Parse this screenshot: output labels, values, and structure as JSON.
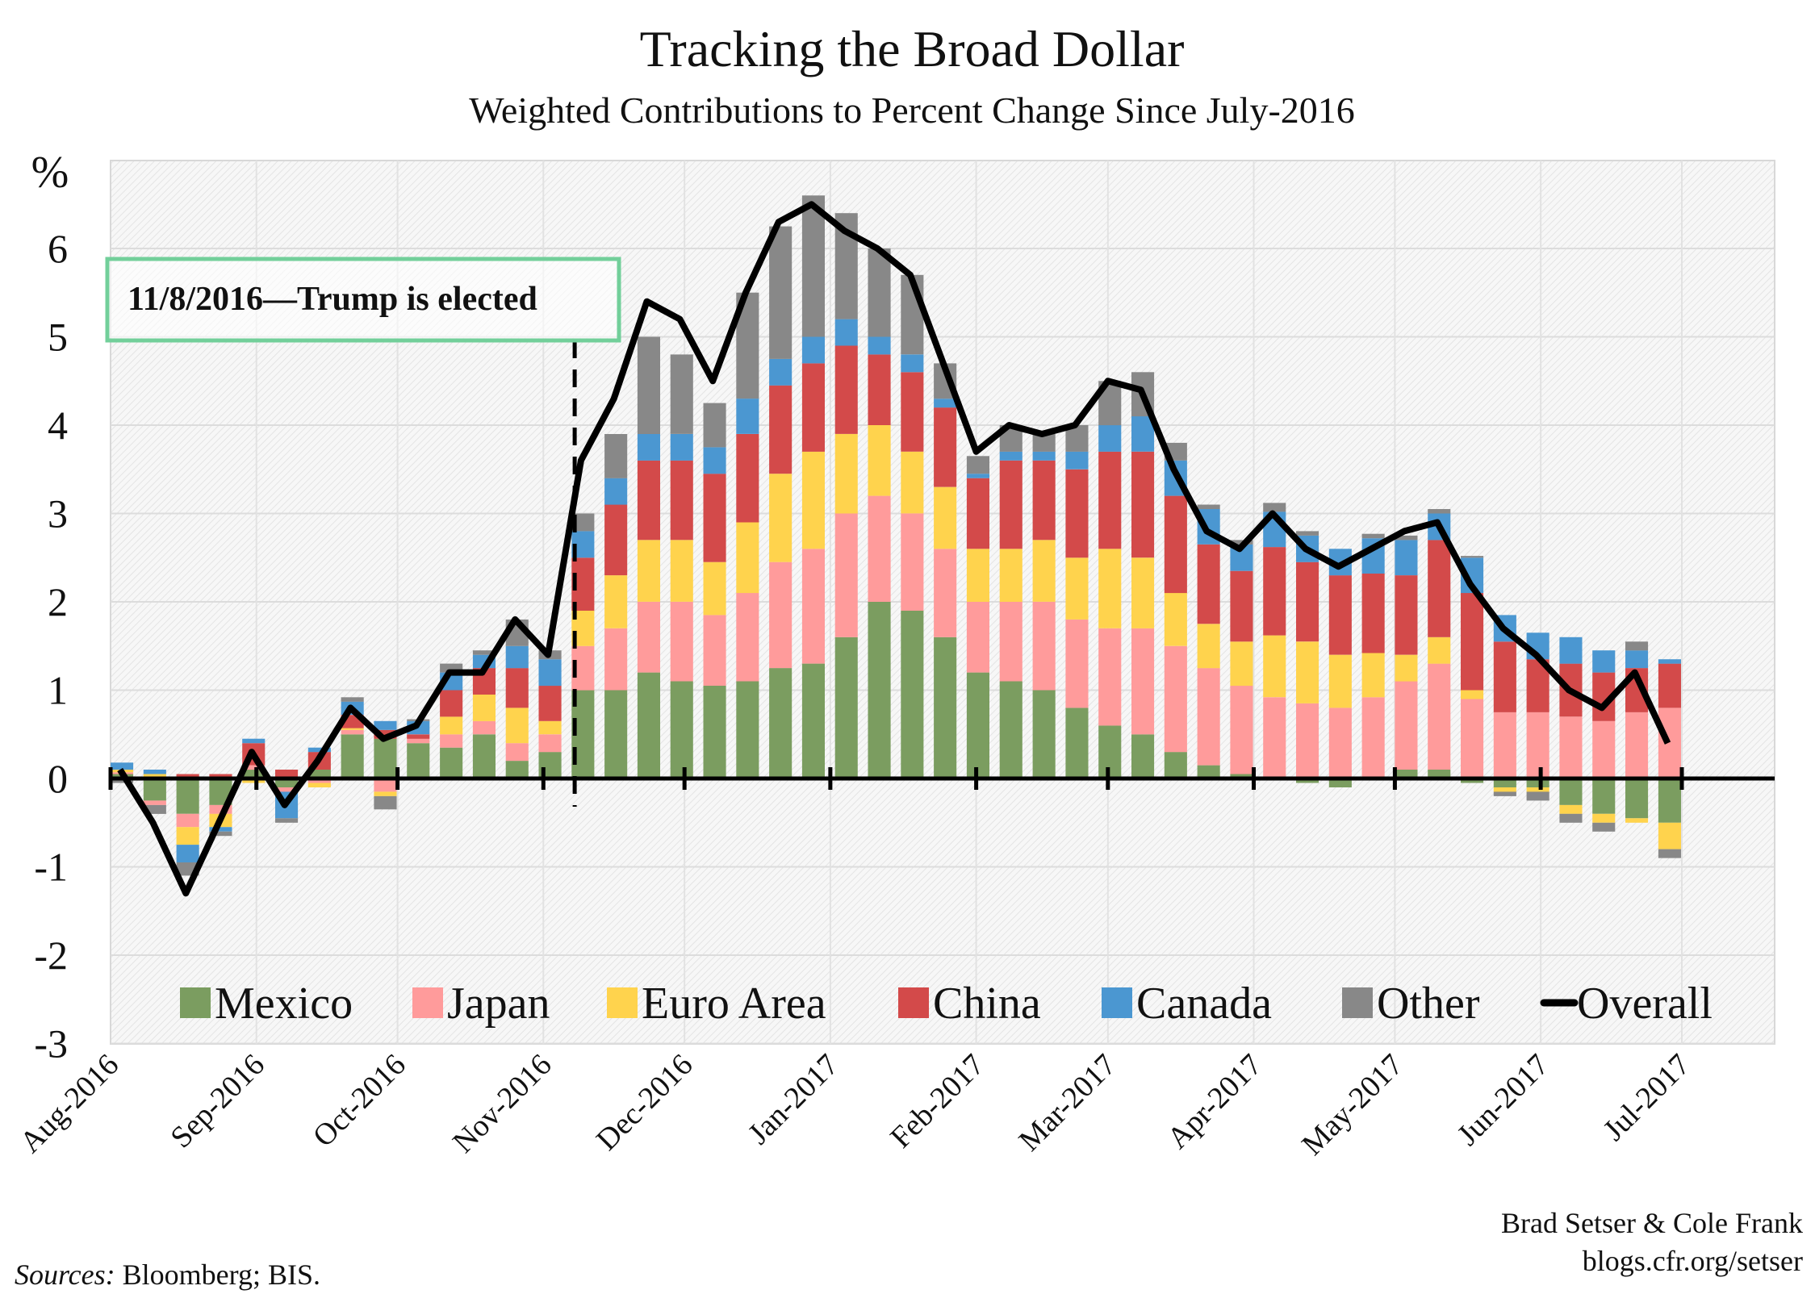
{
  "chart_data": {
    "type": "bar",
    "stacked": true,
    "title": "Tracking the Broad Dollar",
    "subtitle": "Weighted Contributions to Percent Change Since July-2016",
    "ylabel": "%",
    "ylim": [
      -3,
      7
    ],
    "yticks": [
      "-3",
      "-2",
      "-1",
      "0",
      "1",
      "2",
      "3",
      "4",
      "5",
      "6"
    ],
    "xtick_labels": [
      "Aug-2016",
      "Sep-2016",
      "Oct-2016",
      "Nov-2016",
      "Dec-2016",
      "Jan-2017",
      "Feb-2017",
      "Mar-2017",
      "Apr-2017",
      "May-2017",
      "Jun-2017",
      "Jul-2017"
    ],
    "grid": true,
    "legend_position": "bottom",
    "annotation": {
      "text": "11/8/2016—Trump is elected",
      "date": "2016-11-08"
    },
    "x_unit": "week starting (Mon)",
    "weeks": [
      "2016-08-01",
      "2016-08-08",
      "2016-08-15",
      "2016-08-22",
      "2016-08-29",
      "2016-09-05",
      "2016-09-12",
      "2016-09-19",
      "2016-09-26",
      "2016-10-03",
      "2016-10-10",
      "2016-10-17",
      "2016-10-24",
      "2016-10-31",
      "2016-11-07",
      "2016-11-14",
      "2016-11-21",
      "2016-11-28",
      "2016-12-05",
      "2016-12-12",
      "2016-12-19",
      "2016-12-26",
      "2017-01-02",
      "2017-01-09",
      "2017-01-16",
      "2017-01-23",
      "2017-01-30",
      "2017-02-06",
      "2017-02-13",
      "2017-02-20",
      "2017-02-27",
      "2017-03-06",
      "2017-03-13",
      "2017-03-20",
      "2017-03-27",
      "2017-04-03",
      "2017-04-10",
      "2017-04-17",
      "2017-04-24",
      "2017-05-01",
      "2017-05-08",
      "2017-05-15",
      "2017-05-22",
      "2017-05-29",
      "2017-06-05",
      "2017-06-12",
      "2017-06-19",
      "2017-06-26"
    ],
    "series": [
      {
        "name": "Mexico",
        "color": "#7b9d60",
        "values": [
          0.05,
          -0.25,
          -0.4,
          -0.3,
          0.1,
          -0.1,
          0.1,
          0.5,
          0.45,
          0.4,
          0.35,
          0.5,
          0.2,
          0.3,
          1.0,
          1.0,
          1.2,
          1.1,
          1.05,
          1.1,
          1.25,
          1.3,
          1.6,
          2.0,
          1.9,
          1.6,
          1.2,
          1.1,
          1.0,
          0.8,
          0.6,
          0.5,
          0.3,
          0.15,
          0.05,
          0.02,
          -0.05,
          -0.1,
          0.02,
          0.1,
          0.1,
          -0.05,
          -0.1,
          -0.1,
          -0.3,
          -0.4,
          -0.45,
          -0.5
        ]
      },
      {
        "name": "Japan",
        "color": "#ff9b9b",
        "values": [
          0.02,
          -0.05,
          -0.15,
          -0.1,
          0.05,
          -0.05,
          -0.05,
          0.05,
          -0.15,
          0.05,
          0.15,
          0.15,
          0.2,
          0.2,
          0.5,
          0.7,
          0.8,
          0.9,
          0.8,
          1.0,
          1.2,
          1.3,
          1.4,
          1.2,
          1.1,
          1.0,
          0.8,
          0.9,
          1.0,
          1.0,
          1.1,
          1.2,
          1.2,
          1.1,
          1.0,
          0.9,
          0.85,
          0.8,
          0.9,
          1.0,
          1.2,
          0.9,
          0.75,
          0.75,
          0.7,
          0.65,
          0.75,
          0.8
        ]
      },
      {
        "name": "Euro Area",
        "color": "#ffd34d",
        "values": [
          0.03,
          0.05,
          -0.2,
          -0.15,
          -0.05,
          0.0,
          -0.05,
          0.02,
          -0.05,
          -0.02,
          0.2,
          0.3,
          0.4,
          0.15,
          0.4,
          0.6,
          0.7,
          0.7,
          0.6,
          0.8,
          1.0,
          1.1,
          0.9,
          0.8,
          0.7,
          0.7,
          0.6,
          0.6,
          0.7,
          0.7,
          0.9,
          0.8,
          0.6,
          0.5,
          0.5,
          0.7,
          0.7,
          0.6,
          0.5,
          0.3,
          0.3,
          0.1,
          -0.05,
          -0.05,
          -0.1,
          -0.1,
          -0.05,
          -0.3
        ]
      },
      {
        "name": "China",
        "color": "#d34a4a",
        "values": [
          0.0,
          0.0,
          0.05,
          0.05,
          0.25,
          0.1,
          0.2,
          0.15,
          0.1,
          0.05,
          0.3,
          0.3,
          0.45,
          0.4,
          0.6,
          0.8,
          0.9,
          0.9,
          1.0,
          1.0,
          1.0,
          1.0,
          1.0,
          0.8,
          0.9,
          0.9,
          0.8,
          1.0,
          0.9,
          1.0,
          1.1,
          1.2,
          1.1,
          0.9,
          0.8,
          1.0,
          0.9,
          0.9,
          0.9,
          0.9,
          1.1,
          1.1,
          0.8,
          0.6,
          0.6,
          0.55,
          0.5,
          0.5
        ]
      },
      {
        "name": "Canada",
        "color": "#4b97d1",
        "values": [
          0.08,
          0.05,
          -0.2,
          -0.05,
          0.05,
          -0.3,
          0.05,
          0.15,
          0.1,
          0.15,
          0.2,
          0.15,
          0.25,
          0.3,
          0.3,
          0.3,
          0.3,
          0.3,
          0.3,
          0.4,
          0.3,
          0.3,
          0.3,
          0.2,
          0.2,
          0.1,
          0.05,
          0.1,
          0.1,
          0.2,
          0.3,
          0.4,
          0.4,
          0.4,
          0.3,
          0.4,
          0.3,
          0.3,
          0.4,
          0.4,
          0.3,
          0.4,
          0.3,
          0.3,
          0.3,
          0.25,
          0.2,
          0.05
        ]
      },
      {
        "name": "Other",
        "color": "#888888",
        "values": [
          -0.05,
          -0.1,
          -0.15,
          -0.05,
          0.0,
          -0.05,
          0.0,
          0.05,
          -0.15,
          0.02,
          0.1,
          0.05,
          0.3,
          0.1,
          0.2,
          0.5,
          1.1,
          0.9,
          0.5,
          1.2,
          1.5,
          1.6,
          1.2,
          1.0,
          0.9,
          0.4,
          0.2,
          0.3,
          0.2,
          0.3,
          0.5,
          0.5,
          0.2,
          0.05,
          0.05,
          0.1,
          0.05,
          0.0,
          0.05,
          0.05,
          0.05,
          0.02,
          -0.05,
          -0.1,
          -0.1,
          -0.1,
          0.1,
          -0.1
        ]
      }
    ],
    "overall": {
      "name": "Overall",
      "color": "#000000",
      "values": [
        0.1,
        -0.5,
        -1.3,
        -0.5,
        0.3,
        -0.3,
        0.2,
        0.8,
        0.45,
        0.6,
        1.2,
        1.2,
        1.8,
        1.4,
        3.6,
        4.3,
        5.4,
        5.2,
        4.5,
        5.5,
        6.3,
        6.5,
        6.2,
        6.0,
        5.7,
        4.7,
        3.7,
        4.0,
        3.9,
        4.0,
        4.5,
        4.4,
        3.5,
        2.8,
        2.6,
        3.0,
        2.6,
        2.4,
        2.6,
        2.8,
        2.9,
        2.2,
        1.7,
        1.4,
        1.0,
        0.8,
        1.2,
        0.4
      ]
    }
  },
  "credits": {
    "authors": "Brad Setser & Cole Frank",
    "url": "blogs.cfr.org/setser"
  },
  "sources": {
    "label": "Sources:",
    "text": " Bloomberg; BIS."
  }
}
